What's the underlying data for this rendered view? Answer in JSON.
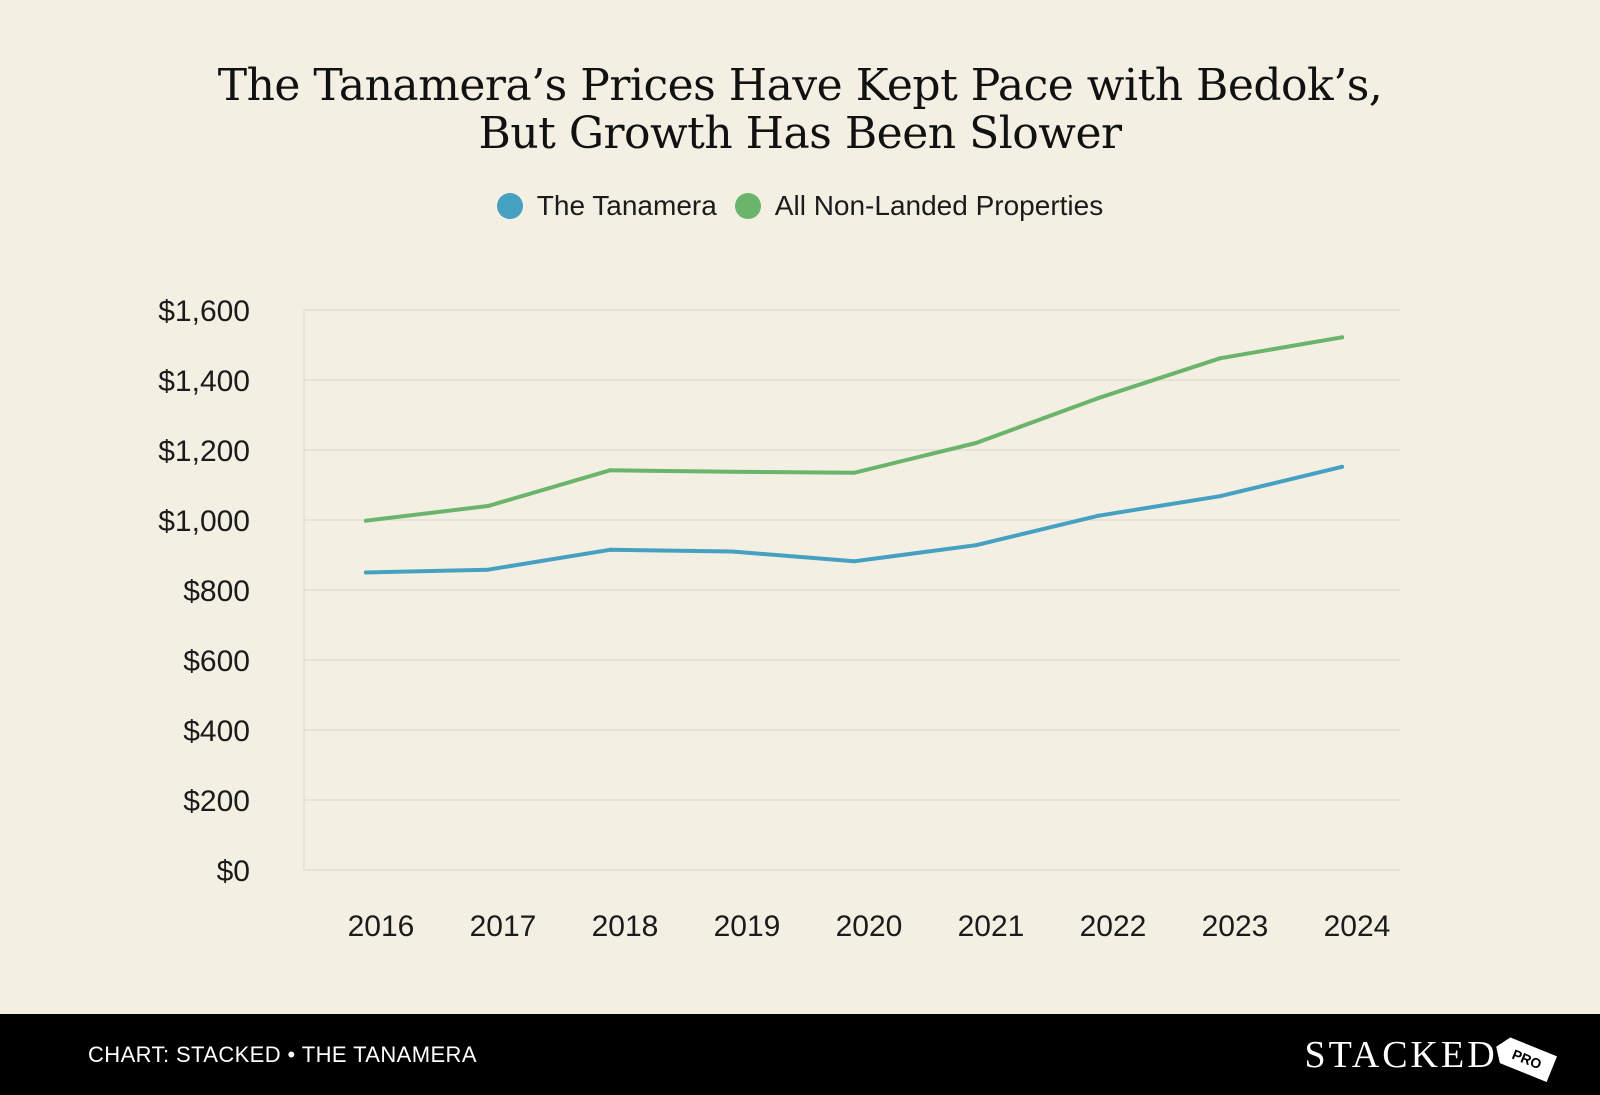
{
  "title_lines": [
    "The Tanamera’s Prices Have Kept Pace with Bedok’s,",
    "But Growth Has Been Slower"
  ],
  "footer": {
    "caption": "CHART: STACKED • THE TANAMERA",
    "logo_text": "STACKED",
    "logo_badge": "PRO"
  },
  "colors": {
    "background": "#f3efe3",
    "grid": "#e3dfd3",
    "tanamera": "#46a0c2",
    "non_landed": "#6ab46c",
    "footer": "#000000"
  },
  "chart_data": {
    "type": "line",
    "x": [
      "2016",
      "2017",
      "2018",
      "2019",
      "2020",
      "2021",
      "2022",
      "2023",
      "2024"
    ],
    "series": [
      {
        "name": "The Tanamera",
        "color": "#46a0c2",
        "values": [
          850,
          858,
          915,
          910,
          882,
          928,
          1012,
          1068,
          1152
        ]
      },
      {
        "name": "All Non-Landed Properties",
        "color": "#6ab46c",
        "values": [
          998,
          1040,
          1142,
          1138,
          1135,
          1220,
          1348,
          1462,
          1522
        ]
      }
    ],
    "y_ticks": [
      "$0",
      "$200",
      "$400",
      "$600",
      "$800",
      "$1,000",
      "$1,200",
      "$1,400",
      "$1,600"
    ],
    "y_tick_values": [
      0,
      200,
      400,
      600,
      800,
      1000,
      1200,
      1400,
      1600
    ],
    "ylim": [
      0,
      1600
    ],
    "grid": true,
    "legend": "top-center",
    "xlabel": "",
    "ylabel": ""
  }
}
